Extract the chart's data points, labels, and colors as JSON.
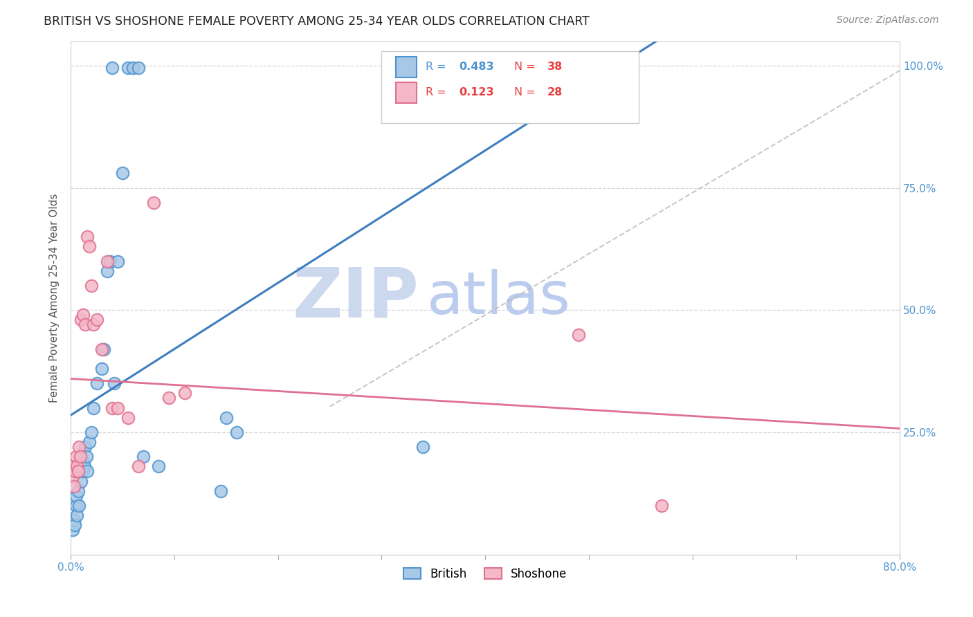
{
  "title": "BRITISH VS SHOSHONE FEMALE POVERTY AMONG 25-34 YEAR OLDS CORRELATION CHART",
  "source": "Source: ZipAtlas.com",
  "ylabel": "Female Poverty Among 25-34 Year Olds",
  "xlim": [
    0.0,
    0.8
  ],
  "ylim": [
    0.0,
    1.05
  ],
  "xticks": [
    0.0,
    0.1,
    0.2,
    0.3,
    0.4,
    0.5,
    0.6,
    0.7,
    0.8
  ],
  "yticks": [
    0.0,
    0.25,
    0.5,
    0.75,
    1.0
  ],
  "british_R": 0.483,
  "british_N": 38,
  "shoshone_R": 0.123,
  "shoshone_N": 28,
  "british_color": "#a8c8e8",
  "british_edge_color": "#4d94d0",
  "shoshone_color": "#f4b8c8",
  "shoshone_edge_color": "#e07090",
  "british_line_color": "#3d7dbf",
  "shoshone_line_color": "#e07090",
  "diag_color": "#bbbbbb",
  "watermark_zip_color": "#ccd8ee",
  "watermark_atlas_color": "#bbccee",
  "british_x": [
    0.002,
    0.003,
    0.004,
    0.005,
    0.005,
    0.006,
    0.007,
    0.008,
    0.01,
    0.011,
    0.012,
    0.013,
    0.014,
    0.015,
    0.016,
    0.018,
    0.02,
    0.022,
    0.025,
    0.03,
    0.032,
    0.035,
    0.038,
    0.04,
    0.042,
    0.045,
    0.05,
    0.055,
    0.06,
    0.065,
    0.07,
    0.085,
    0.145,
    0.15,
    0.16,
    0.34,
    0.355,
    0.375
  ],
  "british_y": [
    0.05,
    0.07,
    0.06,
    0.1,
    0.12,
    0.08,
    0.13,
    0.1,
    0.15,
    0.17,
    0.19,
    0.18,
    0.22,
    0.2,
    0.17,
    0.23,
    0.25,
    0.3,
    0.35,
    0.38,
    0.42,
    0.58,
    0.6,
    0.995,
    0.35,
    0.6,
    0.78,
    0.995,
    0.995,
    0.995,
    0.2,
    0.18,
    0.13,
    0.28,
    0.25,
    0.22,
    0.995,
    0.995
  ],
  "shoshone_x": [
    0.001,
    0.002,
    0.003,
    0.004,
    0.005,
    0.006,
    0.007,
    0.008,
    0.009,
    0.01,
    0.012,
    0.014,
    0.016,
    0.018,
    0.02,
    0.022,
    0.025,
    0.03,
    0.035,
    0.04,
    0.045,
    0.055,
    0.065,
    0.08,
    0.095,
    0.11,
    0.49,
    0.57
  ],
  "shoshone_y": [
    0.18,
    0.16,
    0.14,
    0.17,
    0.2,
    0.18,
    0.17,
    0.22,
    0.2,
    0.48,
    0.49,
    0.47,
    0.65,
    0.63,
    0.55,
    0.47,
    0.48,
    0.42,
    0.6,
    0.3,
    0.3,
    0.28,
    0.18,
    0.72,
    0.32,
    0.33,
    0.45,
    0.1
  ]
}
